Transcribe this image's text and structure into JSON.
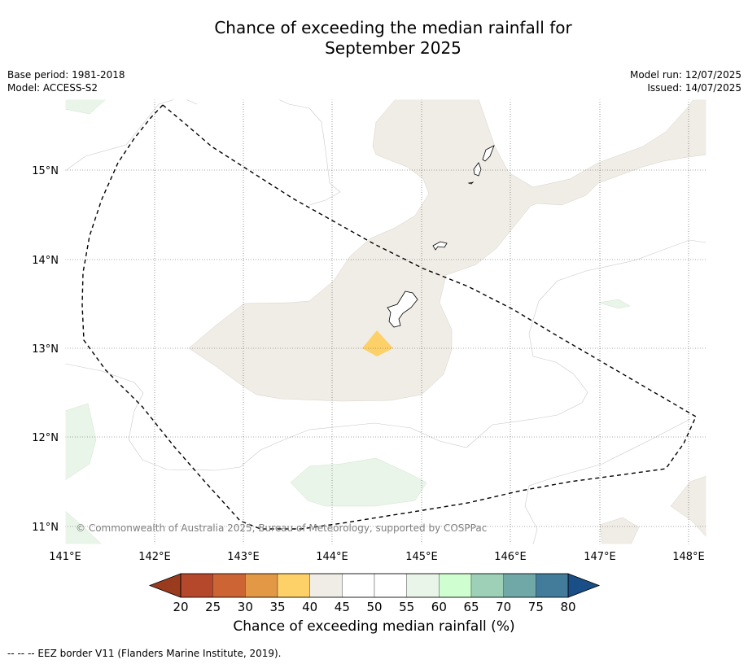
{
  "title": {
    "line1": "Chance of exceeding the median rainfall for",
    "line2": "September 2025"
  },
  "meta_left": {
    "base_period": "Base period: 1981-2018",
    "model": "Model: ACCESS-S2"
  },
  "meta_right": {
    "model_run": "Model run: 12/07/2025",
    "issued": "Issued: 14/07/2025"
  },
  "map": {
    "lon_labels": [
      "141°E",
      "142°E",
      "143°E",
      "144°E",
      "145°E",
      "146°E",
      "147°E",
      "148°E"
    ],
    "lat_labels": [
      "15°N",
      "14°N",
      "13°N",
      "12°N",
      "11°N"
    ],
    "lon_range": [
      141.0,
      148.2
    ],
    "lat_range": [
      10.8,
      15.8
    ],
    "gridlines": "dotted",
    "copyright": "© Commonwealth of Australia 2025, Bureau of Meteorology, supported by COSPPac",
    "colors": {
      "band_40_45": "#f0ece6",
      "band_35_40": "#fdd167",
      "band_55_60": "#eaf5ea",
      "contour": "#c8c8c8",
      "eez": "#000000"
    }
  },
  "colorbar": {
    "ticks": [
      "20",
      "25",
      "30",
      "35",
      "40",
      "45",
      "50",
      "55",
      "60",
      "65",
      "70",
      "75",
      "80"
    ],
    "colors": [
      "#9a3b1e",
      "#b5472a",
      "#cc6433",
      "#e29845",
      "#fdd167",
      "#f0ece6",
      "#ffffff",
      "#ffffff",
      "#eaf5ea",
      "#cfffd0",
      "#9dd0b7",
      "#70a8a8",
      "#427c9a",
      "#194e86"
    ],
    "label": "Chance of exceeding median rainfall (%)"
  },
  "footnote": "--  --  -- EEZ border V11 (Flanders Marine Institute, 2019)."
}
